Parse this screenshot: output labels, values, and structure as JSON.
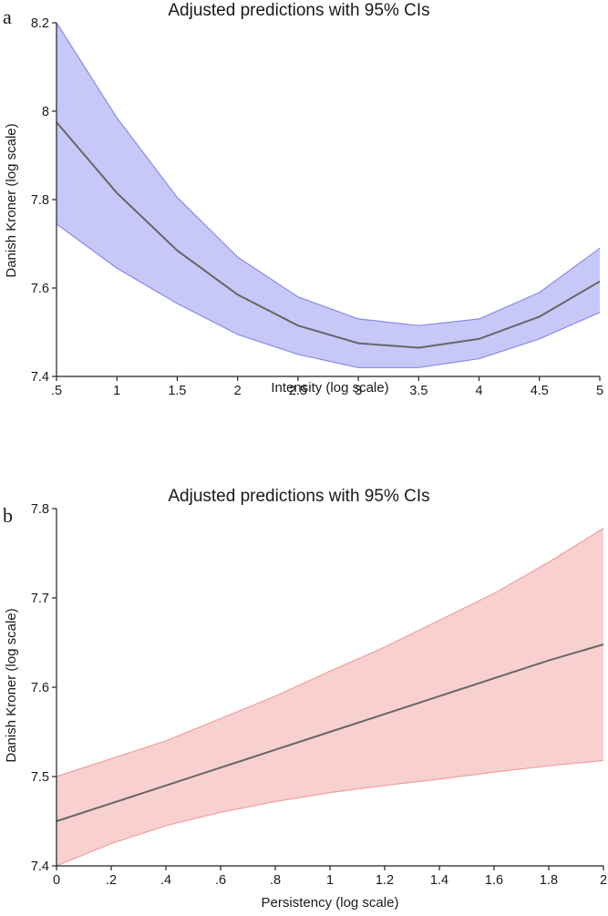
{
  "chart_data": [
    {
      "panel_label": "a",
      "type": "line",
      "title": "Adjusted predictions with 95% CIs",
      "xlabel": "Intensity (log scale)",
      "ylabel": "Danish Kroner (log scale)",
      "xlim": [
        0.5,
        5
      ],
      "ylim": [
        7.4,
        8.2
      ],
      "x_ticks": [
        0.5,
        1,
        1.5,
        2,
        2.5,
        3,
        3.5,
        4,
        4.5,
        5
      ],
      "x_tick_labels": [
        ".5",
        "1",
        "1.5",
        "2",
        "2.5",
        "3",
        "3.5",
        "4",
        "4.5",
        "5"
      ],
      "y_ticks": [
        7.4,
        7.6,
        7.8,
        8.0,
        8.2
      ],
      "y_tick_labels": [
        "7.4",
        "7.6",
        "7.8",
        "8",
        "8.2"
      ],
      "series": [
        {
          "name": "Adjusted prediction",
          "x": [
            0.5,
            1,
            1.5,
            2,
            2.5,
            3,
            3.5,
            4,
            4.5,
            5
          ],
          "values": [
            7.975,
            7.815,
            7.685,
            7.585,
            7.515,
            7.475,
            7.465,
            7.485,
            7.535,
            7.615
          ],
          "ci_lower": [
            7.745,
            7.645,
            7.565,
            7.495,
            7.45,
            7.42,
            7.42,
            7.44,
            7.485,
            7.545
          ],
          "ci_upper": [
            8.2,
            7.985,
            7.805,
            7.67,
            7.58,
            7.53,
            7.515,
            7.53,
            7.59,
            7.69
          ],
          "band_color": "#c8c8f8",
          "band_edge_color": "#8a8ae8",
          "line_color": "#666666"
        }
      ],
      "grid": false
    },
    {
      "panel_label": "b",
      "type": "line",
      "title": "Adjusted predictions with 95% CIs",
      "xlabel": "Persistency (log scale)",
      "ylabel": "Danish Kroner (log scale)",
      "xlim": [
        0,
        2
      ],
      "ylim": [
        7.4,
        7.8
      ],
      "x_ticks": [
        0,
        0.2,
        0.4,
        0.6,
        0.8,
        1,
        1.2,
        1.4,
        1.6,
        1.8,
        2
      ],
      "x_tick_labels": [
        "0",
        ".2",
        ".4",
        ".6",
        ".8",
        "1",
        "1.2",
        "1.4",
        "1.6",
        "1.8",
        "2"
      ],
      "y_ticks": [
        7.4,
        7.5,
        7.6,
        7.7,
        7.8
      ],
      "y_tick_labels": [
        "7.4",
        "7.5",
        "7.6",
        "7.7",
        "7.8"
      ],
      "series": [
        {
          "name": "Adjusted prediction",
          "x": [
            0,
            0.2,
            0.4,
            0.6,
            0.8,
            1,
            1.2,
            1.4,
            1.6,
            1.8,
            2
          ],
          "values": [
            7.45,
            7.47,
            7.49,
            7.51,
            7.53,
            7.55,
            7.57,
            7.59,
            7.61,
            7.63,
            7.648
          ],
          "ci_lower": [
            7.4,
            7.425,
            7.445,
            7.46,
            7.472,
            7.482,
            7.49,
            7.497,
            7.505,
            7.512,
            7.518
          ],
          "ci_upper": [
            7.5,
            7.52,
            7.54,
            7.565,
            7.59,
            7.618,
            7.645,
            7.675,
            7.705,
            7.74,
            7.778
          ],
          "band_color": "#f8d0d0",
          "band_edge_color": "#f0a0a0",
          "line_color": "#666666"
        }
      ],
      "grid": false
    }
  ]
}
